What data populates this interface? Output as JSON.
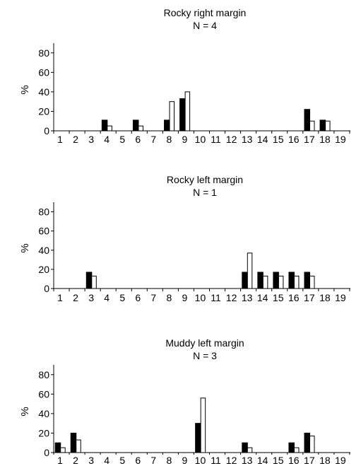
{
  "chart_data": [
    {
      "type": "bar",
      "title": "Rocky right margin",
      "subtitle": "N = 4",
      "ylabel": "%",
      "xlabel": "",
      "categories": [
        "1",
        "2",
        "3",
        "4",
        "5",
        "6",
        "7",
        "8",
        "9",
        "10",
        "11",
        "12",
        "13",
        "14",
        "15",
        "16",
        "17",
        "18",
        "19"
      ],
      "yticks": [
        "0",
        "20",
        "40",
        "60",
        "80"
      ],
      "ylim": [
        0,
        90
      ],
      "grid": false,
      "series": [
        {
          "color": "#000000",
          "values": [
            0,
            0,
            0,
            11,
            0,
            11,
            0,
            11,
            33,
            0,
            0,
            0,
            0,
            0,
            0,
            0,
            22,
            11,
            0
          ]
        },
        {
          "color": "#ffffff",
          "values": [
            0,
            0,
            0,
            5,
            0,
            5,
            0,
            30,
            40,
            0,
            0,
            0,
            0,
            0,
            0,
            0,
            10,
            10,
            0
          ]
        }
      ]
    },
    {
      "type": "bar",
      "title": "Rocky left margin",
      "subtitle": "N = 1",
      "ylabel": "%",
      "xlabel": "",
      "categories": [
        "1",
        "2",
        "3",
        "4",
        "5",
        "6",
        "7",
        "8",
        "9",
        "10",
        "11",
        "12",
        "13",
        "14",
        "15",
        "16",
        "17",
        "18",
        "19"
      ],
      "yticks": [
        "0",
        "20",
        "40",
        "60",
        "80"
      ],
      "ylim": [
        0,
        90
      ],
      "grid": false,
      "series": [
        {
          "color": "#000000",
          "values": [
            0,
            0,
            17,
            0,
            0,
            0,
            0,
            0,
            0,
            0,
            0,
            0,
            17,
            17,
            17,
            17,
            17,
            0,
            0
          ]
        },
        {
          "color": "#ffffff",
          "values": [
            0,
            0,
            13,
            0,
            0,
            0,
            0,
            0,
            0,
            0,
            0,
            0,
            37,
            13,
            13,
            13,
            13,
            0,
            0
          ]
        }
      ]
    },
    {
      "type": "bar",
      "title": "Muddy left margin",
      "subtitle": "N = 3",
      "ylabel": "%",
      "xlabel": "",
      "categories": [
        "1",
        "2",
        "3",
        "4",
        "5",
        "6",
        "7",
        "8",
        "9",
        "10",
        "11",
        "12",
        "13",
        "14",
        "15",
        "16",
        "17",
        "18",
        "19"
      ],
      "yticks": [
        "0",
        "20",
        "40",
        "60",
        "80"
      ],
      "ylim": [
        0,
        90
      ],
      "grid": false,
      "series": [
        {
          "color": "#000000",
          "values": [
            10,
            20,
            0,
            0,
            0,
            0,
            0,
            0,
            0,
            30,
            0,
            0,
            10,
            0,
            0,
            10,
            20,
            0,
            0
          ]
        },
        {
          "color": "#ffffff",
          "values": [
            5,
            13,
            0,
            0,
            0,
            0,
            0,
            0,
            0,
            56,
            0,
            0,
            5,
            0,
            0,
            5,
            17,
            0,
            0
          ]
        }
      ]
    }
  ]
}
